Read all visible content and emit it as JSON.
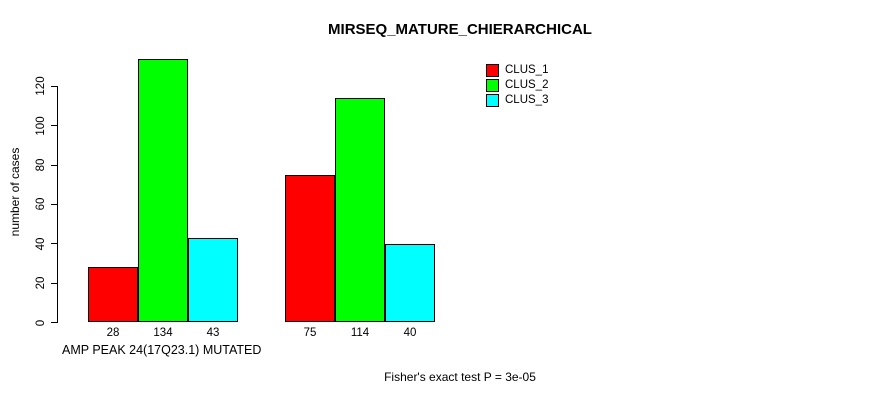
{
  "chart_data": {
    "type": "bar",
    "title": "MIRSEQ_MATURE_CHIERARCHICAL",
    "xlabel": "AMP PEAK 24(17Q23.1) MUTATED",
    "ylabel": "number of cases",
    "ylim": [
      0,
      134
    ],
    "yticks": [
      0,
      20,
      40,
      60,
      80,
      100,
      120
    ],
    "grid": false,
    "legend_position": "top-right",
    "groups": 2,
    "series": [
      {
        "name": "CLUS_1",
        "color": "#ff0000",
        "values": [
          28,
          75
        ]
      },
      {
        "name": "CLUS_2",
        "color": "#00ff00",
        "values": [
          134,
          114
        ]
      },
      {
        "name": "CLUS_3",
        "color": "#00ffff",
        "values": [
          43,
          40
        ]
      }
    ],
    "bar_value_labels": [
      [
        "28",
        "134",
        "43"
      ],
      [
        "75",
        "114",
        "40"
      ]
    ],
    "annotation": "Fisher's exact test P = 3e-05"
  },
  "colors": {
    "background": "#ffffff",
    "axis": "#000000",
    "text": "#000000"
  }
}
